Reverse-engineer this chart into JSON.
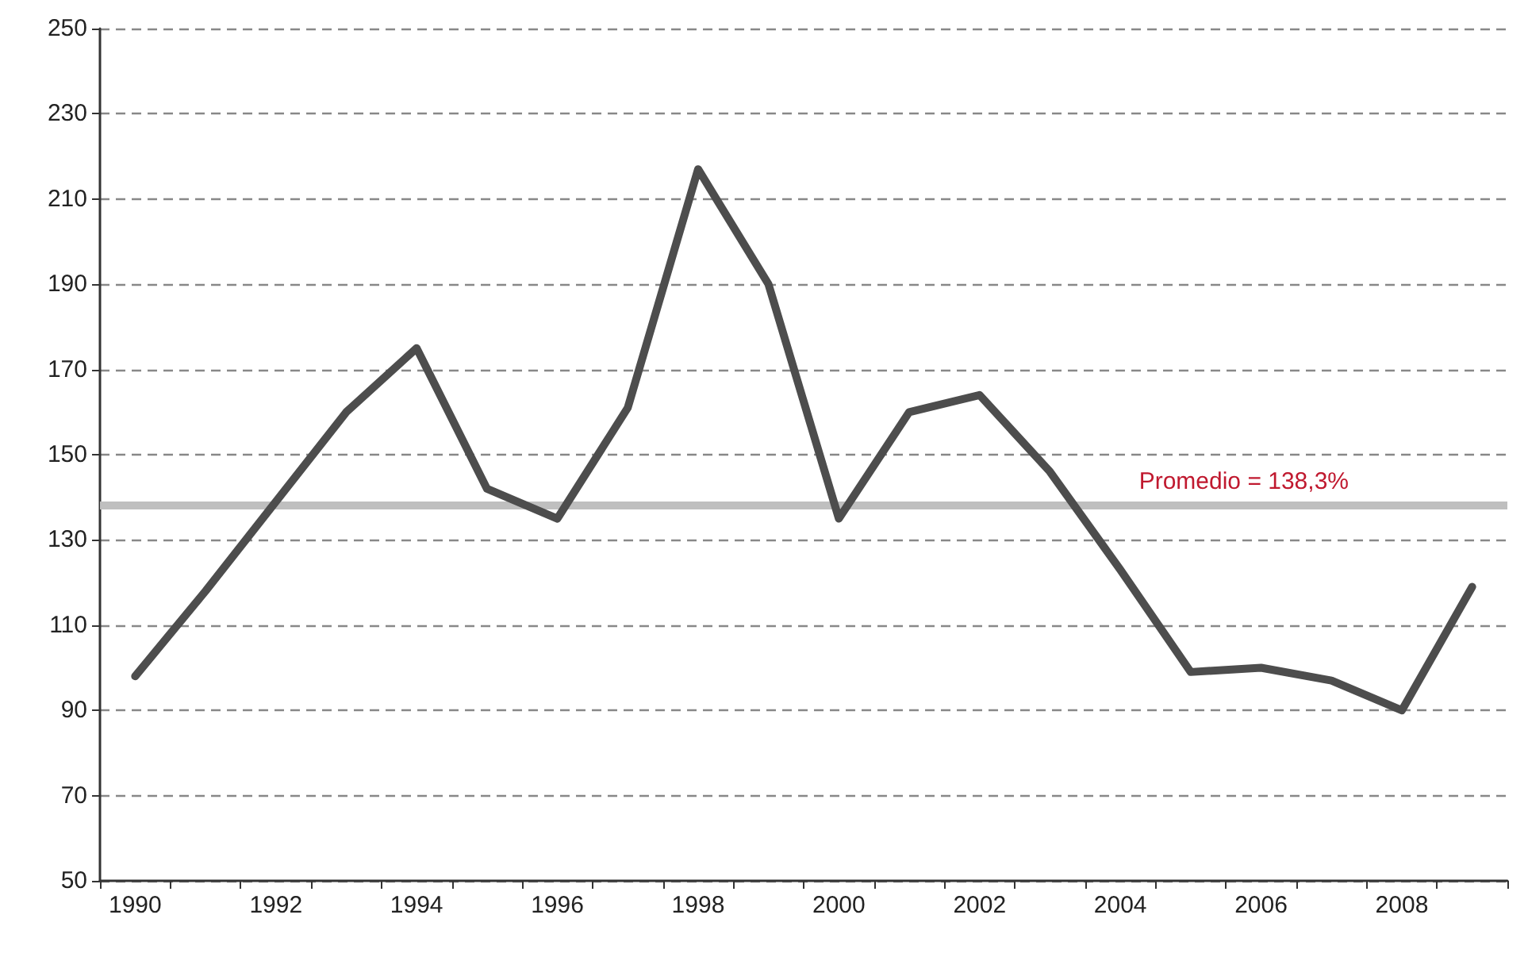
{
  "chart_data": {
    "type": "line",
    "categories": [
      "1990",
      null,
      "1992",
      null,
      "1994",
      null,
      "1996",
      null,
      "1998",
      null,
      "2000",
      null,
      "2002",
      null,
      "2004",
      null,
      "2006",
      null,
      "2008",
      null
    ],
    "series": [
      {
        "color": "#4d4d4d",
        "values": [
          98,
          118,
          139,
          160,
          175,
          142,
          135,
          161,
          217,
          190,
          135,
          160,
          164,
          146,
          123,
          99,
          100,
          97,
          90,
          119
        ]
      }
    ],
    "ylim": [
      50,
      250
    ],
    "yticks": [
      50,
      70,
      90,
      110,
      130,
      150,
      170,
      190,
      210,
      230,
      250
    ],
    "grid": "y",
    "line_style": "solid",
    "marker": "none",
    "ref_lines": [
      {
        "axis": "y",
        "value": 138.3,
        "label": "Promedio = 138,3%",
        "color": "#bfbfbf"
      }
    ]
  }
}
